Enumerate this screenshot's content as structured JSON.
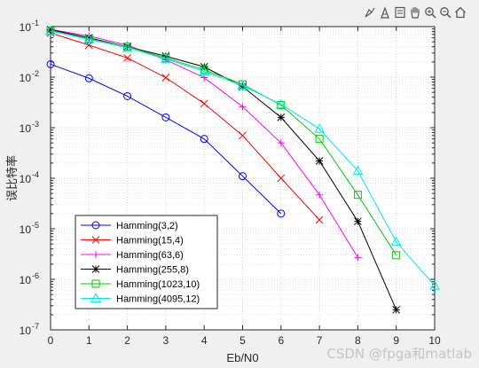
{
  "toolbar": {
    "icons": [
      "brush-icon",
      "data-tip-icon",
      "legend-icon",
      "pan-icon",
      "zoom-in-icon",
      "zoom-out-icon",
      "home-icon"
    ]
  },
  "watermark": "CSDN @fpga和matlab",
  "chart_data": {
    "type": "line",
    "title": "",
    "xlabel": "Eb/N0",
    "ylabel": "误比特率",
    "xlim": [
      0,
      10
    ],
    "ylim": [
      1e-07,
      0.1
    ],
    "yscale": "log",
    "xticks": [
      "0",
      "1",
      "2",
      "3",
      "4",
      "5",
      "6",
      "7",
      "8",
      "9",
      "10"
    ],
    "yticks": [
      {
        "base": "10",
        "exp": "-7"
      },
      {
        "base": "10",
        "exp": "-6"
      },
      {
        "base": "10",
        "exp": "-5"
      },
      {
        "base": "10",
        "exp": "-4"
      },
      {
        "base": "10",
        "exp": "-3"
      },
      {
        "base": "10",
        "exp": "-2"
      },
      {
        "base": "10",
        "exp": "-1"
      }
    ],
    "grid": true,
    "minor_grid": true,
    "legend_position": "lower-left",
    "series": [
      {
        "name": "Hamming(3,2)",
        "color": "#0000ff",
        "marker": "circle",
        "x": [
          0,
          1,
          2,
          3,
          4,
          5,
          6
        ],
        "y": [
          0.018,
          0.0095,
          0.0042,
          0.0016,
          0.0006,
          0.00011,
          2e-05
        ]
      },
      {
        "name": "Hamming(15,4)",
        "color": "#ff0000",
        "marker": "x",
        "x": [
          0,
          1,
          2,
          3,
          4,
          5,
          6,
          7
        ],
        "y": [
          0.075,
          0.043,
          0.024,
          0.0098,
          0.003,
          0.0007,
          0.0001,
          1.5e-05
        ]
      },
      {
        "name": "Hamming(63,6)",
        "color": "#ff00ff",
        "marker": "plus",
        "x": [
          0,
          1,
          2,
          3,
          4,
          5,
          6,
          7,
          8
        ],
        "y": [
          0.088,
          0.065,
          0.043,
          0.022,
          0.0098,
          0.0026,
          0.0005,
          4.7e-05,
          2.7e-06
        ]
      },
      {
        "name": "Hamming(255,8)",
        "color": "#000000",
        "marker": "star",
        "x": [
          0,
          1,
          2,
          3,
          4,
          5,
          6,
          7,
          8,
          9
        ],
        "y": [
          0.087,
          0.06,
          0.04,
          0.026,
          0.016,
          0.0065,
          0.0016,
          0.00022,
          1.4e-05,
          2.5e-07
        ]
      },
      {
        "name": "Hamming(1023,10)",
        "color": "#00cc00",
        "marker": "square",
        "x": [
          0,
          1,
          2,
          3,
          4,
          5,
          6,
          7,
          8,
          9
        ],
        "y": [
          0.083,
          0.058,
          0.04,
          0.024,
          0.014,
          0.0072,
          0.0028,
          0.0006,
          4.7e-05,
          3e-06
        ]
      },
      {
        "name": "Hamming(4095,12)",
        "color": "#00e5ee",
        "marker": "triangle",
        "x": [
          0,
          1,
          2,
          3,
          4,
          5,
          6,
          7,
          8,
          9,
          10
        ],
        "y": [
          0.082,
          0.056,
          0.038,
          0.023,
          0.013,
          0.0068,
          0.0029,
          0.00095,
          0.00014,
          5.5e-06,
          7.5e-07
        ]
      }
    ]
  }
}
